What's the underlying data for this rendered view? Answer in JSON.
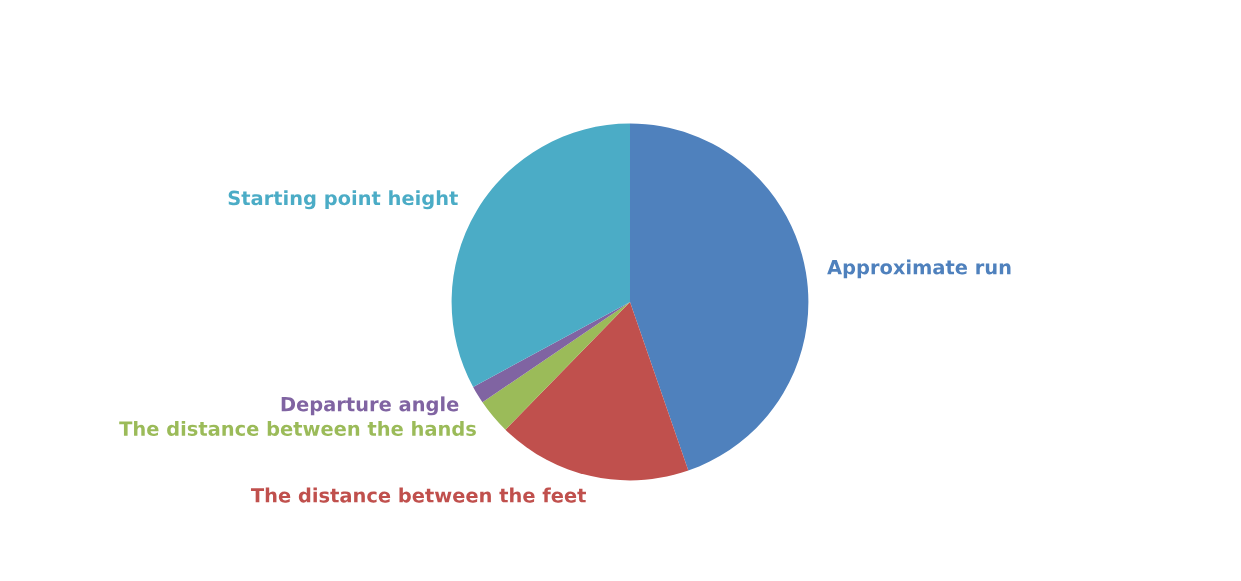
{
  "chart_data": {
    "type": "pie",
    "categories": [
      "Approximate run",
      "The distance between the feet",
      "The distance between the hands",
      "Departure angle",
      "Starting point height"
    ],
    "values": [
      44.7,
      17.6,
      3.2,
      1.6,
      32.9
    ],
    "colors": [
      "#4f81bd",
      "#c0504d",
      "#9bbb59",
      "#8064a2",
      "#4bacc6"
    ],
    "legend": false
  }
}
